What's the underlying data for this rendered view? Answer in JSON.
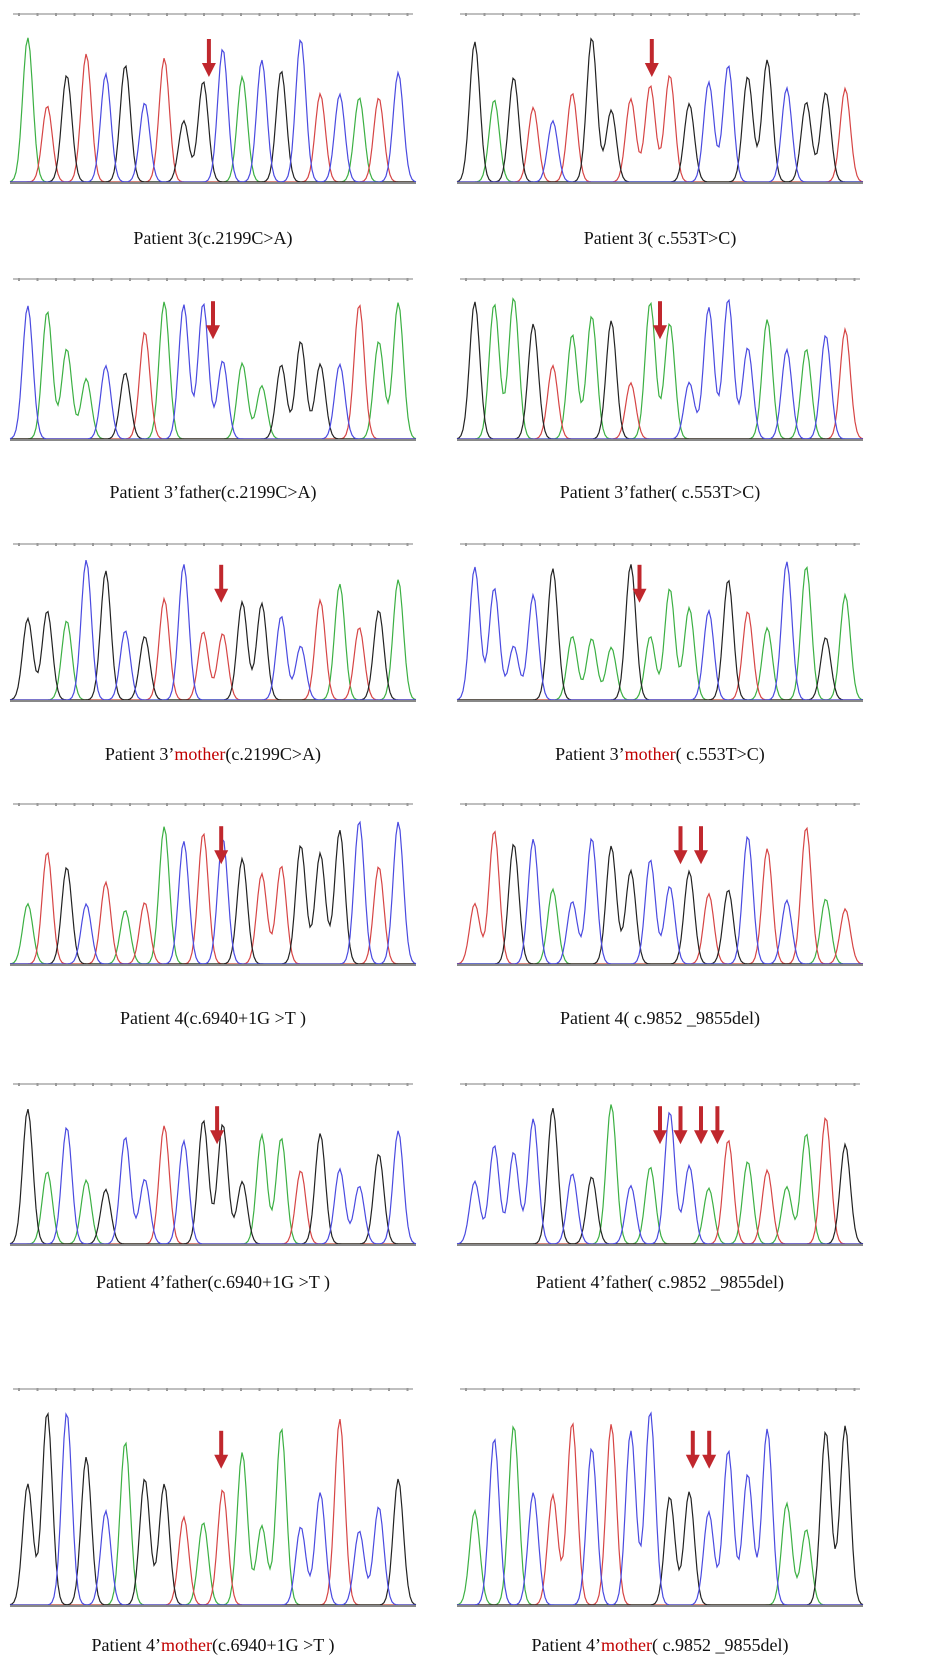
{
  "panels": [
    {
      "caption": [
        {
          "text": "Patient 3(c.2199C>A)"
        }
      ]
    },
    {
      "caption": [
        {
          "text": "Patient 3( c.553T>C)"
        }
      ]
    },
    {
      "caption": [
        {
          "text": "Patient 3’father(c.2199C>A)"
        }
      ]
    },
    {
      "caption": [
        {
          "text": "Patient 3’father( c.553T>C)"
        }
      ]
    },
    {
      "caption": [
        {
          "text": "Patient 3’"
        },
        {
          "text": "mother",
          "color": "#c00000"
        },
        {
          "text": "(c.2199C>A)"
        }
      ]
    },
    {
      "caption": [
        {
          "text": "Patient 3’"
        },
        {
          "text": "mother",
          "color": "#c00000"
        },
        {
          "text": "( c.553T>C)"
        }
      ]
    },
    {
      "caption": [
        {
          "text": "Patient 4(c.6940+1G >T )"
        }
      ]
    },
    {
      "caption": [
        {
          "text": "Patient 4( c.9852 _9855del)"
        }
      ]
    },
    {
      "caption": [
        {
          "text": "Patient 4’father(c.6940+1G >T )"
        }
      ]
    },
    {
      "caption": [
        {
          "text": "Patient 4’father( c.9852 _9855del)"
        }
      ]
    },
    {
      "caption": [
        {
          "text": "Patient 4’"
        },
        {
          "text": "mother",
          "color": "#c00000"
        },
        {
          "text": "(c.6940+1G >T )"
        }
      ]
    },
    {
      "caption": [
        {
          "text": "Patient 4’"
        },
        {
          "text": "mother",
          "color": "#c00000"
        },
        {
          "text": "( c.9852 _9855del)"
        }
      ]
    }
  ]
}
